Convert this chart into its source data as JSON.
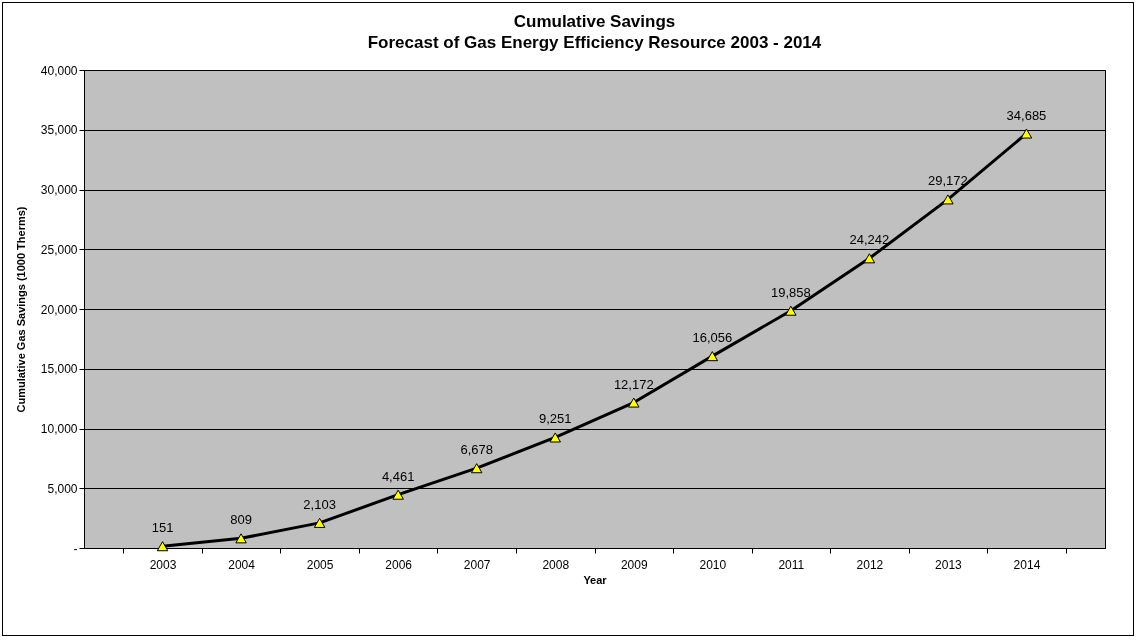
{
  "chart_data": {
    "type": "line",
    "title": "Cumulative Savings",
    "subtitle": "Forecast of Gas Energy Efficiency Resource 2003 -  2014",
    "xlabel": "Year",
    "ylabel": "Cumulative Gas Savings (1000 Therms)",
    "categories": [
      "2003",
      "2004",
      "2005",
      "2006",
      "2007",
      "2008",
      "2009",
      "2010",
      "2011",
      "2012",
      "2013",
      "2014"
    ],
    "series": [
      {
        "color": "#000000",
        "values": [
          151,
          809,
          2103,
          4461,
          6678,
          9251,
          12172,
          16056,
          19858,
          24242,
          29172,
          34685
        ],
        "value_labels": [
          "151",
          "809",
          "2,103",
          "4,461",
          "6,678",
          "9,251",
          "12,172",
          "16,056",
          "19,858",
          "24,242",
          "29,172",
          "34,685"
        ]
      }
    ],
    "ylim": [
      0,
      40000
    ],
    "yticks": [
      {
        "value": 0,
        "label": "-"
      },
      {
        "value": 5000,
        "label": "5,000"
      },
      {
        "value": 10000,
        "label": "10,000"
      },
      {
        "value": 15000,
        "label": "15,000"
      },
      {
        "value": 20000,
        "label": "20,000"
      },
      {
        "value": 25000,
        "label": "25,000"
      },
      {
        "value": 30000,
        "label": "30,000"
      },
      {
        "value": 35000,
        "label": "35,000"
      },
      {
        "value": 40000,
        "label": "40,000"
      }
    ],
    "grid": "y",
    "marker": "triangle",
    "line_style": "solid"
  }
}
